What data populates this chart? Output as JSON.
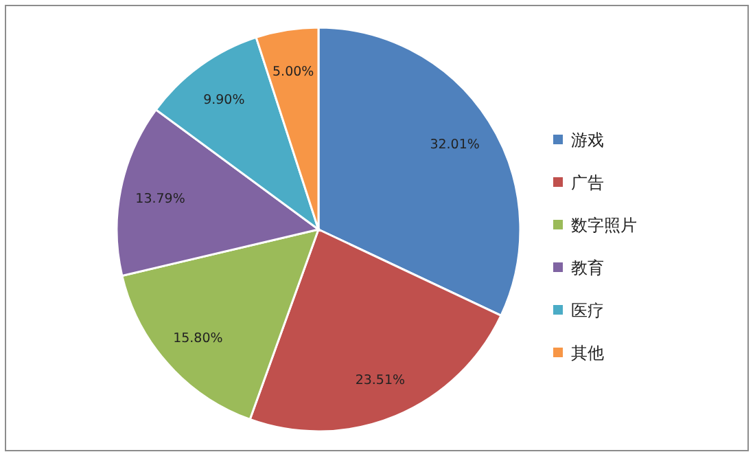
{
  "chart_data": {
    "type": "pie",
    "categories": [
      "游戏",
      "广告",
      "数字照片",
      "教育",
      "医疗",
      "其他"
    ],
    "values": [
      32.01,
      23.51,
      15.8,
      13.79,
      9.9,
      5.0
    ],
    "colors": [
      "#4f81bd",
      "#c0504d",
      "#9bbb59",
      "#8064a2",
      "#4bacc6",
      "#f79646"
    ],
    "value_labels": [
      "32.01%",
      "23.51%",
      "15.80%",
      "13.79%",
      "9.90%",
      "5.00%"
    ],
    "legend": "right"
  }
}
